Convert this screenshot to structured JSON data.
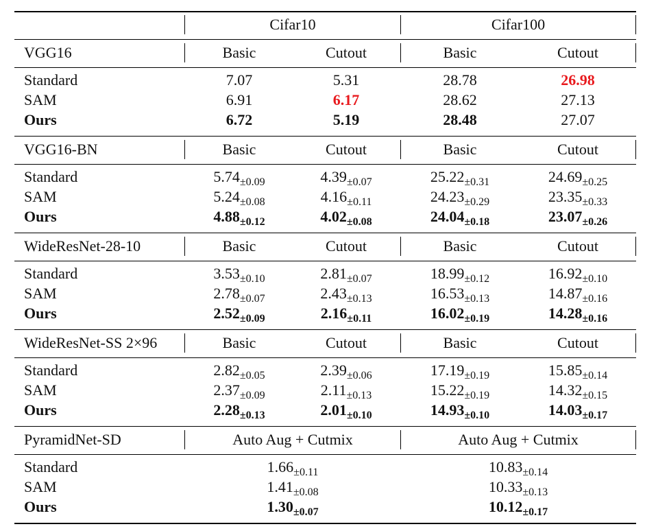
{
  "colors": {
    "highlight": "#e8191d",
    "text": "#111111",
    "rule": "#000000"
  },
  "header": {
    "dataset1": "Cifar10",
    "dataset2": "Cifar100"
  },
  "sections": [
    {
      "model": "VGG16",
      "columns": [
        "Basic",
        "Cutout",
        "Basic",
        "Cutout"
      ],
      "rows": [
        {
          "method": "Standard",
          "bold": false,
          "values": [
            {
              "v": "7.07",
              "pm": ""
            },
            {
              "v": "5.31",
              "pm": ""
            },
            {
              "v": "28.78",
              "pm": ""
            },
            {
              "v": "26.98",
              "pm": "",
              "red": true
            }
          ]
        },
        {
          "method": "SAM",
          "bold": false,
          "values": [
            {
              "v": "6.91",
              "pm": ""
            },
            {
              "v": "6.17",
              "pm": "",
              "red": true
            },
            {
              "v": "28.62",
              "pm": ""
            },
            {
              "v": "27.13",
              "pm": ""
            }
          ]
        },
        {
          "method": "Ours",
          "bold": true,
          "values": [
            {
              "v": "6.72",
              "pm": ""
            },
            {
              "v": "5.19",
              "pm": ""
            },
            {
              "v": "28.48",
              "pm": ""
            },
            {
              "v": "27.07",
              "pm": "",
              "nobold": true
            }
          ]
        }
      ]
    },
    {
      "model": "VGG16-BN",
      "columns": [
        "Basic",
        "Cutout",
        "Basic",
        "Cutout"
      ],
      "rows": [
        {
          "method": "Standard",
          "bold": false,
          "values": [
            {
              "v": "5.74",
              "pm": "±0.09"
            },
            {
              "v": "4.39",
              "pm": "±0.07"
            },
            {
              "v": "25.22",
              "pm": "±0.31"
            },
            {
              "v": "24.69",
              "pm": "±0.25"
            }
          ]
        },
        {
          "method": "SAM",
          "bold": false,
          "values": [
            {
              "v": "5.24",
              "pm": "±0.08"
            },
            {
              "v": "4.16",
              "pm": "±0.11"
            },
            {
              "v": "24.23",
              "pm": "±0.29"
            },
            {
              "v": "23.35",
              "pm": "±0.33"
            }
          ]
        },
        {
          "method": "Ours",
          "bold": true,
          "values": [
            {
              "v": "4.88",
              "pm": "±0.12"
            },
            {
              "v": "4.02",
              "pm": "±0.08"
            },
            {
              "v": "24.04",
              "pm": "±0.18"
            },
            {
              "v": "23.07",
              "pm": "±0.26"
            }
          ]
        }
      ]
    },
    {
      "model": "WideResNet-28-10",
      "columns": [
        "Basic",
        "Cutout",
        "Basic",
        "Cutout"
      ],
      "rows": [
        {
          "method": "Standard",
          "bold": false,
          "values": [
            {
              "v": "3.53",
              "pm": "±0.10"
            },
            {
              "v": "2.81",
              "pm": "±0.07"
            },
            {
              "v": "18.99",
              "pm": "±0.12"
            },
            {
              "v": "16.92",
              "pm": "±0.10"
            }
          ]
        },
        {
          "method": "SAM",
          "bold": false,
          "values": [
            {
              "v": "2.78",
              "pm": "±0.07"
            },
            {
              "v": "2.43",
              "pm": "±0.13"
            },
            {
              "v": "16.53",
              "pm": "±0.13"
            },
            {
              "v": "14.87",
              "pm": "±0.16"
            }
          ]
        },
        {
          "method": "Ours",
          "bold": true,
          "values": [
            {
              "v": "2.52",
              "pm": "±0.09"
            },
            {
              "v": "2.16",
              "pm": "±0.11"
            },
            {
              "v": "16.02",
              "pm": "±0.19"
            },
            {
              "v": "14.28",
              "pm": "±0.16"
            }
          ]
        }
      ]
    },
    {
      "model": "WideResNet-SS 2×96",
      "columns": [
        "Basic",
        "Cutout",
        "Basic",
        "Cutout"
      ],
      "rows": [
        {
          "method": "Standard",
          "bold": false,
          "values": [
            {
              "v": "2.82",
              "pm": "±0.05"
            },
            {
              "v": "2.39",
              "pm": "±0.06"
            },
            {
              "v": "17.19",
              "pm": "±0.19"
            },
            {
              "v": "15.85",
              "pm": "±0.14"
            }
          ]
        },
        {
          "method": "SAM",
          "bold": false,
          "values": [
            {
              "v": "2.37",
              "pm": "±0.09"
            },
            {
              "v": "2.11",
              "pm": "±0.13"
            },
            {
              "v": "15.22",
              "pm": "±0.19"
            },
            {
              "v": "14.32",
              "pm": "±0.15"
            }
          ]
        },
        {
          "method": "Ours",
          "bold": true,
          "values": [
            {
              "v": "2.28",
              "pm": "±0.13"
            },
            {
              "v": "2.01",
              "pm": "±0.10"
            },
            {
              "v": "14.93",
              "pm": "±0.10"
            },
            {
              "v": "14.03",
              "pm": "±0.17"
            }
          ]
        }
      ]
    },
    {
      "model": "PyramidNet-SD",
      "columns": [
        "Auto Aug + Cutmix",
        "Auto Aug + Cutmix"
      ],
      "rows": [
        {
          "method": "Standard",
          "bold": false,
          "values": [
            {
              "v": "1.66",
              "pm": "±0.11"
            },
            {
              "v": "10.83",
              "pm": "±0.14"
            }
          ]
        },
        {
          "method": "SAM",
          "bold": false,
          "values": [
            {
              "v": "1.41",
              "pm": "±0.08"
            },
            {
              "v": "10.33",
              "pm": "±0.13"
            }
          ]
        },
        {
          "method": "Ours",
          "bold": true,
          "values": [
            {
              "v": "1.30",
              "pm": "±0.07"
            },
            {
              "v": "10.12",
              "pm": "±0.17"
            }
          ]
        }
      ]
    }
  ]
}
